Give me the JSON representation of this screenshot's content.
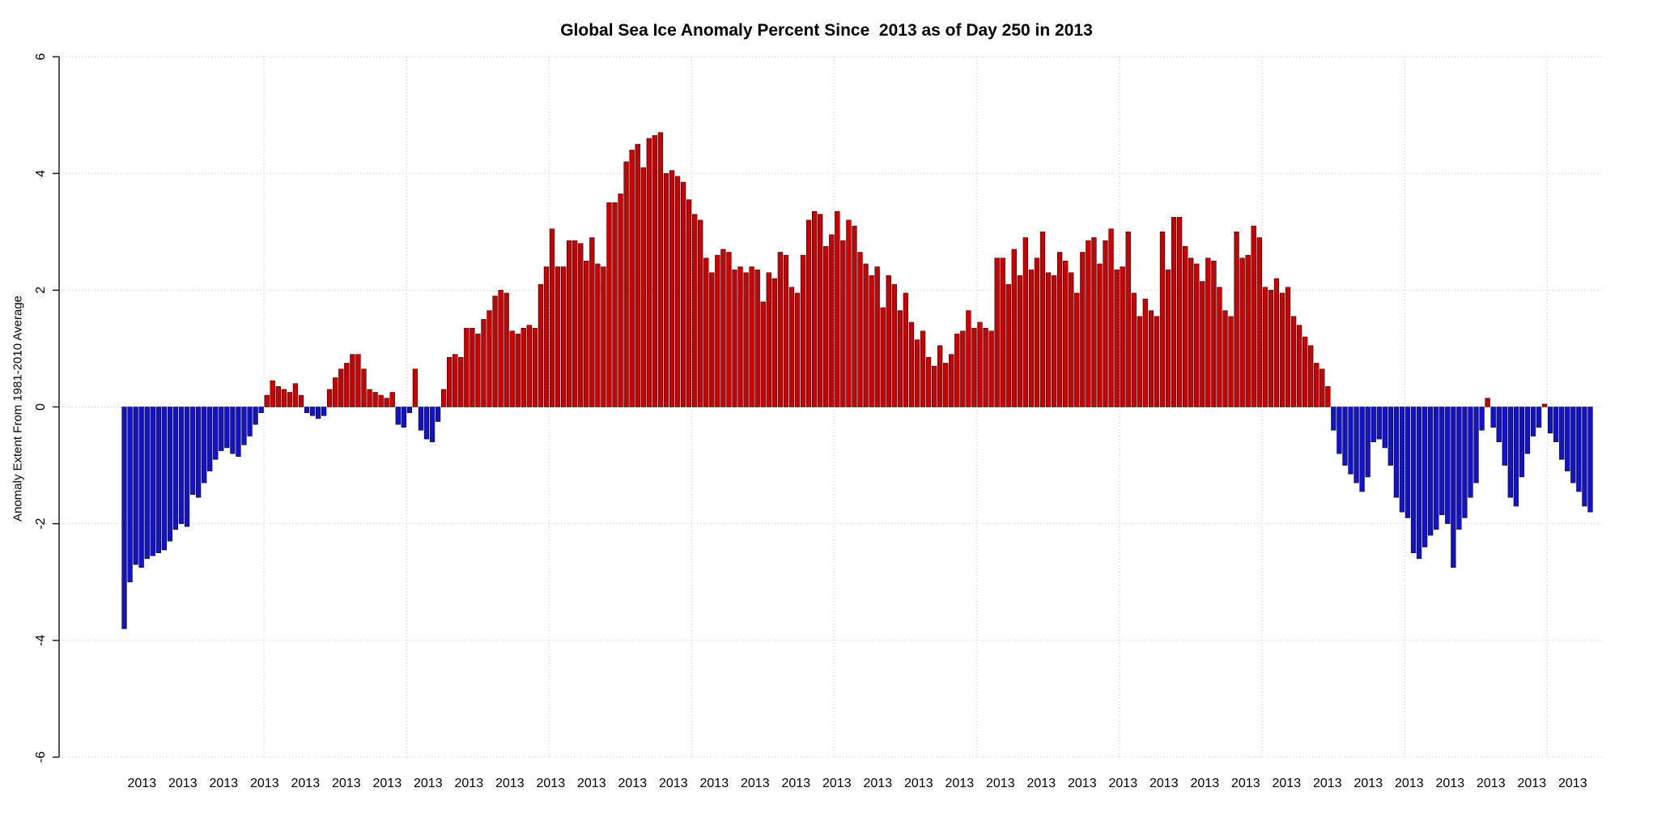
{
  "chart_data": {
    "type": "bar",
    "title": "Global Sea Ice Anomaly Percent Since  2013 as of Day 250 in 2013",
    "ylabel": "Anomaly Extent From 1981-2010 Average",
    "xlabel": "",
    "ylim": [
      -6,
      6
    ],
    "y_ticks": [
      -6,
      -4,
      -2,
      0,
      2,
      4,
      6
    ],
    "grid": true,
    "legend": "none",
    "positive_color": "#CC0000",
    "negative_color": "#1212CE",
    "bar_border_color": "#000000",
    "x_tick_labels": [
      "2013",
      "2013",
      "2013",
      "2013",
      "2013",
      "2013",
      "2013",
      "2013",
      "2013",
      "2013",
      "2013",
      "2013",
      "2013",
      "2013",
      "2013",
      "2013",
      "2013",
      "2013",
      "2013",
      "2013",
      "2013",
      "2013",
      "2013",
      "2013",
      "2013",
      "2013",
      "2013",
      "2013",
      "2013",
      "2013",
      "2013",
      "2013",
      "2013",
      "2013",
      "2013",
      "2013"
    ],
    "values": [
      -3.8,
      -3.0,
      -2.7,
      -2.75,
      -2.6,
      -2.55,
      -2.5,
      -2.45,
      -2.3,
      -2.1,
      -2.0,
      -2.05,
      -1.5,
      -1.55,
      -1.3,
      -1.1,
      -0.9,
      -0.75,
      -0.7,
      -0.8,
      -0.85,
      -0.65,
      -0.5,
      -0.3,
      -0.1,
      0.2,
      0.45,
      0.35,
      0.3,
      0.25,
      0.4,
      0.2,
      -0.1,
      -0.15,
      -0.2,
      -0.15,
      0.3,
      0.5,
      0.65,
      0.75,
      0.9,
      0.9,
      0.65,
      0.3,
      0.25,
      0.2,
      0.15,
      0.25,
      -0.3,
      -0.35,
      -0.1,
      0.65,
      -0.4,
      -0.55,
      -0.6,
      -0.25,
      0.3,
      0.85,
      0.9,
      0.85,
      1.35,
      1.35,
      1.25,
      1.5,
      1.65,
      1.9,
      2.0,
      1.95,
      1.3,
      1.25,
      1.35,
      1.4,
      1.35,
      2.1,
      2.4,
      3.05,
      2.4,
      2.4,
      2.85,
      2.85,
      2.8,
      2.5,
      2.9,
      2.45,
      2.4,
      3.5,
      3.5,
      3.65,
      4.2,
      4.4,
      4.5,
      4.1,
      4.6,
      4.65,
      4.7,
      4.0,
      4.05,
      3.95,
      3.85,
      3.55,
      3.3,
      3.2,
      2.55,
      2.3,
      2.6,
      2.7,
      2.65,
      2.35,
      2.4,
      2.3,
      2.4,
      2.35,
      1.8,
      2.3,
      2.2,
      2.65,
      2.6,
      2.05,
      1.95,
      2.6,
      3.2,
      3.35,
      3.3,
      2.75,
      2.95,
      3.35,
      2.85,
      3.2,
      3.1,
      2.65,
      2.45,
      2.25,
      2.4,
      1.7,
      2.25,
      2.1,
      1.65,
      1.95,
      1.45,
      1.15,
      1.3,
      0.85,
      0.7,
      1.05,
      0.75,
      0.9,
      1.25,
      1.3,
      1.65,
      1.35,
      1.45,
      1.35,
      1.3,
      2.55,
      2.55,
      2.1,
      2.7,
      2.25,
      2.9,
      2.35,
      2.55,
      3.0,
      2.3,
      2.25,
      2.65,
      2.5,
      2.3,
      1.95,
      2.65,
      2.85,
      2.9,
      2.45,
      2.85,
      3.05,
      2.35,
      2.4,
      3.0,
      1.95,
      1.55,
      1.85,
      1.65,
      1.55,
      3.0,
      2.35,
      3.25,
      3.25,
      2.75,
      2.55,
      2.45,
      2.15,
      2.55,
      2.5,
      2.05,
      1.65,
      1.55,
      3.0,
      2.55,
      2.6,
      3.1,
      2.9,
      2.05,
      2.0,
      2.2,
      1.95,
      2.05,
      1.55,
      1.4,
      1.2,
      1.05,
      0.75,
      0.65,
      0.35,
      -0.4,
      -0.8,
      -1.0,
      -1.15,
      -1.3,
      -1.45,
      -1.2,
      -0.6,
      -0.55,
      -0.7,
      -1.0,
      -1.55,
      -1.8,
      -1.9,
      -2.5,
      -2.6,
      -2.4,
      -2.2,
      -2.1,
      -1.85,
      -2.0,
      -2.75,
      -2.1,
      -1.9,
      -1.55,
      -1.3,
      -0.4,
      0.15,
      -0.35,
      -0.6,
      -1.0,
      -1.55,
      -1.7,
      -1.2,
      -0.8,
      -0.5,
      -0.35,
      0.05,
      -0.45,
      -0.6,
      -0.9,
      -1.1,
      -1.3,
      -1.45,
      -1.7,
      -1.8
    ]
  }
}
